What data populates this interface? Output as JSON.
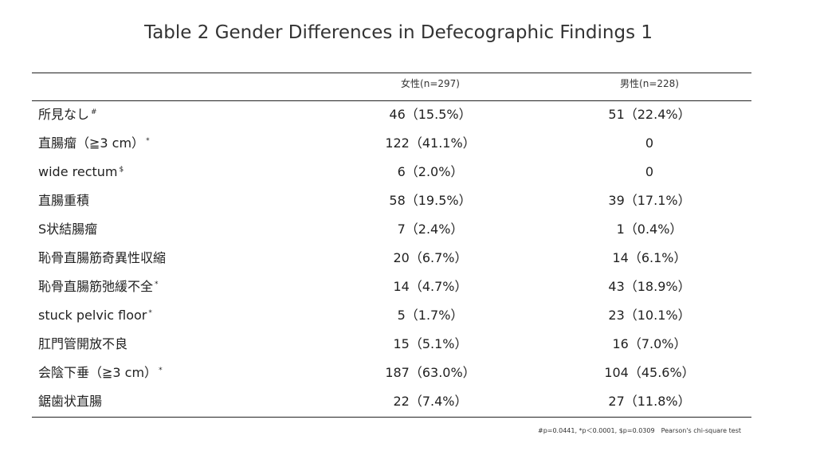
{
  "title": "Table 2 Gender Differences in Defecographic Findings 1",
  "columns": {
    "female": "女性(n=297)",
    "male": "男性(n=228)"
  },
  "rows": [
    {
      "label": "所見なし",
      "mark": "#",
      "female": "46（15.5%）",
      "male": "51（22.4%）"
    },
    {
      "label": "直腸瘤（≧3 cm）",
      "mark": "*",
      "female": "122（41.1%）",
      "male": "0"
    },
    {
      "label": "wide rectum",
      "mark": "$",
      "female": "6（2.0%）",
      "male": "0"
    },
    {
      "label": "直腸重積",
      "mark": "",
      "female": "58（19.5%）",
      "male": "39（17.1%）"
    },
    {
      "label": "S状結腸瘤",
      "mark": "",
      "female": "7（2.4%）",
      "male": "1（0.4%）"
    },
    {
      "label": "恥骨直腸筋奇異性収縮",
      "mark": "",
      "female": "20（6.7%）",
      "male": "14（6.1%）"
    },
    {
      "label": "恥骨直腸筋弛緩不全",
      "mark": "*",
      "female": "14（4.7%）",
      "male": "43（18.9%）"
    },
    {
      "label": "stuck pelvic floor",
      "mark": "*",
      "female": "5（1.7%）",
      "male": "23（10.1%）"
    },
    {
      "label": "肛門管開放不良",
      "mark": "",
      "female": "15（5.1%）",
      "male": "16（7.0%）"
    },
    {
      "label": "会陰下垂（≧3 cm）",
      "mark": "*",
      "female": "187（63.0%）",
      "male": "104（45.6%）"
    },
    {
      "label": "鋸歯状直腸",
      "mark": "",
      "female": "22（7.4%）",
      "male": "27（11.8%）"
    }
  ],
  "footnote": "#p=0.0441, *p＜0.0001, $p=0.0309　Pearson's chi-square test"
}
